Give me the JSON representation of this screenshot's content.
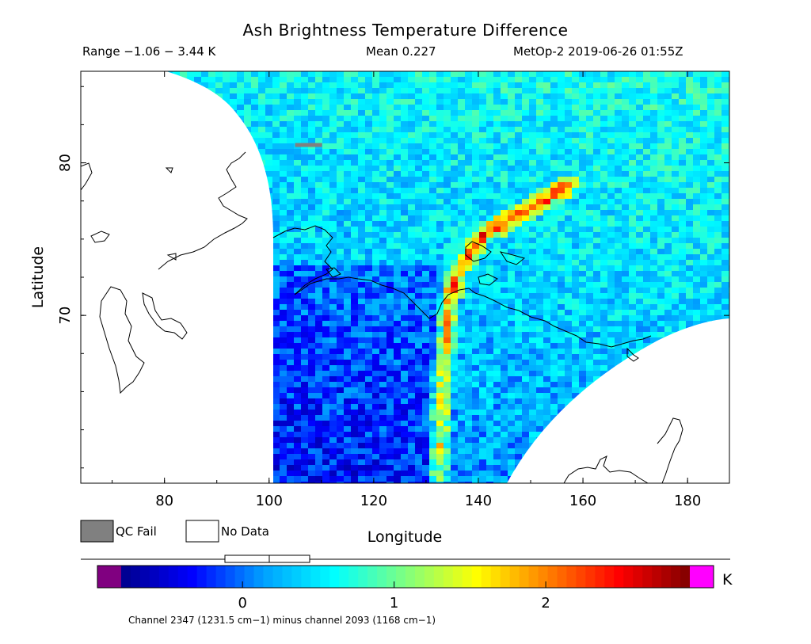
{
  "header": {
    "title": "Ash Brightness Temperature Difference",
    "range": "Range −1.06 − 3.44 K",
    "mean": "Mean 0.227",
    "satellite": "MetOp-2 2019-06-26 01:55Z"
  },
  "legend": {
    "qc_fail": "QC Fail",
    "no_data": "No Data",
    "qc_fail_color": "#808080",
    "no_data_color": "#ffffff"
  },
  "colorbar": {
    "unit": "K",
    "caption": "Channel 2347 (1231.5 cm−1) minus channel 2093 (1168 cm−1)",
    "ticks": [
      0,
      1,
      2
    ],
    "tick_labels": [
      "0",
      "1",
      "2"
    ],
    "min": -0.8,
    "max": 2.95,
    "under_color": "#800080",
    "over_color": "#ff00ff",
    "stops": [
      "#00008b",
      "#0000ff",
      "#00a0ff",
      "#00ffff",
      "#80ff80",
      "#ffff00",
      "#ff8000",
      "#ff0000",
      "#800000"
    ]
  },
  "chart_data": {
    "type": "heatmap",
    "title": "Ash Brightness Temperature Difference",
    "xlabel": "Longitude",
    "ylabel": "Latitude",
    "xlim": [
      64,
      188
    ],
    "ylim": [
      59,
      86
    ],
    "x_ticks": [
      80,
      100,
      120,
      140,
      160,
      180
    ],
    "x_tick_labels": [
      "80",
      "100",
      "120",
      "140",
      "160",
      "180"
    ],
    "y_ticks": [
      70,
      80
    ],
    "y_tick_labels": [
      "70",
      "80"
    ],
    "value_range": [
      -1.06,
      3.44
    ],
    "mean": 0.227,
    "units": "K",
    "ash_plume_feature": [
      {
        "lon": 132,
        "lat": 59.5
      },
      {
        "lon": 132.5,
        "lat": 62
      },
      {
        "lon": 133,
        "lat": 65
      },
      {
        "lon": 133.5,
        "lat": 68
      },
      {
        "lon": 134.5,
        "lat": 71
      },
      {
        "lon": 137,
        "lat": 73.5
      },
      {
        "lon": 141,
        "lat": 75.3
      },
      {
        "lon": 150,
        "lat": 77
      },
      {
        "lon": 157,
        "lat": 78.5
      }
    ]
  }
}
